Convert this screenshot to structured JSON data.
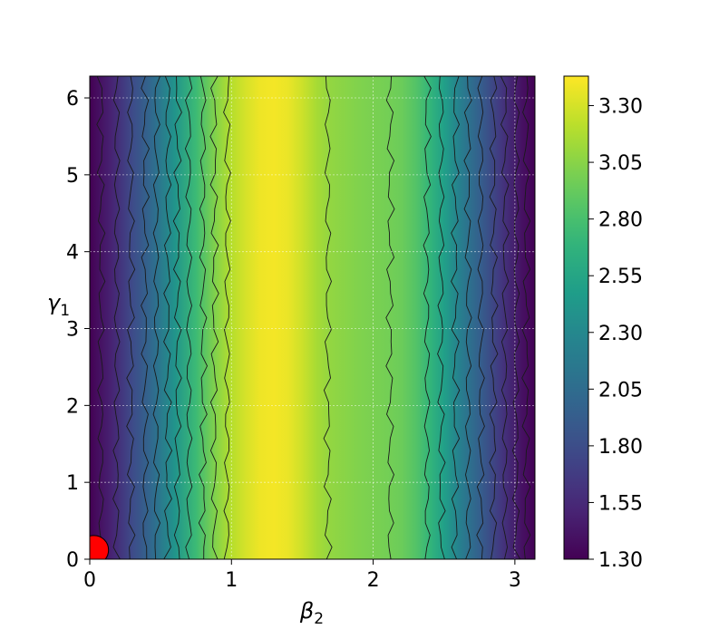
{
  "chart_data": {
    "type": "contour",
    "xlabel": "β",
    "xlabel_sub": "2",
    "ylabel": "γ",
    "ylabel_sub": "1",
    "xlim": [
      0,
      3.1416
    ],
    "ylim": [
      0,
      6.2832
    ],
    "xticks": [
      0,
      1,
      2,
      3
    ],
    "yticks": [
      0,
      1,
      2,
      3,
      4,
      5,
      6
    ],
    "colormap": "viridis",
    "colorbar": {
      "range": [
        1.3,
        3.43
      ],
      "ticks": [
        "1.30",
        "1.55",
        "1.80",
        "2.05",
        "2.30",
        "2.55",
        "2.80",
        "3.05",
        "3.30"
      ]
    },
    "grid": true,
    "profile_beta": [
      0,
      0.15,
      0.3,
      0.45,
      0.6,
      0.75,
      0.9,
      1.0,
      1.1,
      1.2,
      1.3,
      1.4,
      1.5,
      1.6,
      1.7,
      1.8,
      1.9,
      2.0,
      2.1,
      2.2,
      2.3,
      2.4,
      2.5,
      2.6,
      2.75,
      2.9,
      3.05,
      3.1416
    ],
    "profile_value": [
      1.3,
      1.5,
      1.78,
      2.05,
      2.4,
      2.75,
      3.05,
      3.2,
      3.3,
      3.38,
      3.4,
      3.37,
      3.27,
      3.15,
      3.08,
      3.05,
      3.02,
      3.0,
      2.98,
      2.95,
      2.85,
      2.7,
      2.5,
      2.25,
      1.95,
      1.65,
      1.4,
      1.3
    ],
    "contour_betas": [
      0.08,
      0.19,
      0.29,
      0.39,
      0.47,
      0.55,
      0.62,
      0.7,
      0.8,
      0.88,
      0.97,
      1.68,
      2.12,
      2.38,
      2.48,
      2.58,
      2.67,
      2.76,
      2.85,
      2.93,
      3.01,
      3.08
    ],
    "marker": {
      "beta": 0.03,
      "gamma": 0.12,
      "color": "#ff0000"
    }
  }
}
